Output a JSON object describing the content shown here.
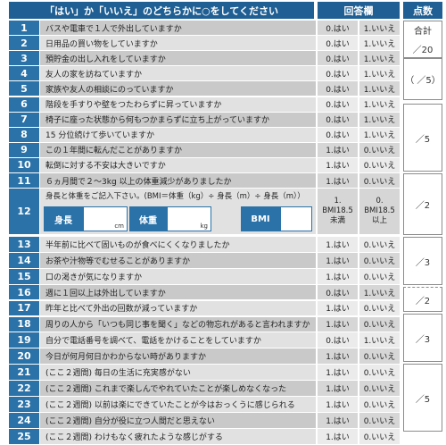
{
  "header": {
    "question_title": "「はい」か「いいえ」のどちらかに○をしてください",
    "answer_title": "回答欄",
    "score_title": "点数"
  },
  "questions": [
    {
      "n": "1",
      "text": "バスや電車で１人で外出していますか",
      "a": "0.はい",
      "b": "1.いいえ"
    },
    {
      "n": "2",
      "text": "日用品の買い物をしていますか",
      "a": "0.はい",
      "b": "1.いいえ"
    },
    {
      "n": "3",
      "text": "預貯金の出し入れをしていますか",
      "a": "0.はい",
      "b": "1.いいえ"
    },
    {
      "n": "4",
      "text": "友人の家を訪ねていますか",
      "a": "0.はい",
      "b": "1.いいえ"
    },
    {
      "n": "5",
      "text": "家族や友人の相談にのっていますか",
      "a": "0.はい",
      "b": "1.いいえ"
    },
    {
      "n": "6",
      "text": "階段を手すりや壁をつたわらずに昇っていますか",
      "a": "0.はい",
      "b": "1.いいえ"
    },
    {
      "n": "7",
      "text": "椅子に座った状態から何もつかまらずに立ち上がっていますか",
      "a": "0.はい",
      "b": "1.いいえ"
    },
    {
      "n": "8",
      "text": "15 分位続けて歩いていますか",
      "a": "0.はい",
      "b": "1.いいえ"
    },
    {
      "n": "9",
      "text": "この１年間に転んだことがありますか",
      "a": "1.はい",
      "b": "0.いいえ"
    },
    {
      "n": "10",
      "text": "転倒に対する不安は大きいですか",
      "a": "1.はい",
      "b": "0.いいえ"
    },
    {
      "n": "11",
      "text": "６ヵ月間で２～3kg 以上の体重減少がありましたか",
      "a": "1.はい",
      "b": "0.いいえ"
    },
    {
      "n": "13",
      "text": "半年前に比べて固いものが食べにくくなりましたか",
      "a": "1.はい",
      "b": "0.いいえ"
    },
    {
      "n": "14",
      "text": "お茶や汁物等でむせることがありますか",
      "a": "1.はい",
      "b": "0.いいえ"
    },
    {
      "n": "15",
      "text": "口の渇きが気になりますか",
      "a": "1.はい",
      "b": "0.いいえ"
    },
    {
      "n": "16",
      "text": "週に１回以上は外出していますか",
      "a": "0.はい",
      "b": "1.いいえ"
    },
    {
      "n": "17",
      "text": "昨年と比べて外出の回数が減っていますか",
      "a": "1.はい",
      "b": "0.いいえ"
    },
    {
      "n": "18",
      "text": "周りの人から「いつも同じ事を聞く」などの物忘れがあると言われますか",
      "a": "1.はい",
      "b": "0.いいえ"
    },
    {
      "n": "19",
      "text": "自分で電話番号を調べて、電話をかけることをしていますか",
      "a": "0.はい",
      "b": "1.いいえ"
    },
    {
      "n": "20",
      "text": "今日が何月何日かわからない時がありますか",
      "a": "1.はい",
      "b": "0.いいえ"
    },
    {
      "n": "21",
      "text": "(ここ２週間) 毎日の生活に充実感がない",
      "a": "1.はい",
      "b": "0.いいえ"
    },
    {
      "n": "22",
      "text": "(ここ２週間) これまで楽しんでやれていたことが楽しめなくなった",
      "a": "1.はい",
      "b": "0.いいえ"
    },
    {
      "n": "23",
      "text": "(ここ２週間) 以前は楽にできていたことが今はおっくうに感じられる",
      "a": "1.はい",
      "b": "0.いいえ"
    },
    {
      "n": "24",
      "text": "(ここ２週間) 自分が役に立つ人間だと思えない",
      "a": "1.はい",
      "b": "0.いいえ"
    },
    {
      "n": "25",
      "text": "(ここ２週間) わけもなく疲れたような感じがする",
      "a": "1.はい",
      "b": "0.いいえ"
    }
  ],
  "q12": {
    "n": "12",
    "text": "身長と体重をご記入下さい。(BMI＝体重（kg）÷ 身長（m）÷ 身長（m））",
    "height_label": "身長",
    "height_unit": "cm",
    "weight_label": "体重",
    "weight_unit": "kg",
    "bmi_label": "BMI",
    "opt_a": [
      "1.",
      "BMI18.5",
      "未満"
    ],
    "opt_b": [
      "0.",
      "BMI18.5",
      "以上"
    ]
  },
  "scores": {
    "total_label": "合計",
    "total_max": "／20",
    "s1": "（ ／5）",
    "s2": "／5",
    "s3": "／2",
    "s4": "／3",
    "s5": "／2",
    "s6": "／3",
    "s7": "／5"
  }
}
